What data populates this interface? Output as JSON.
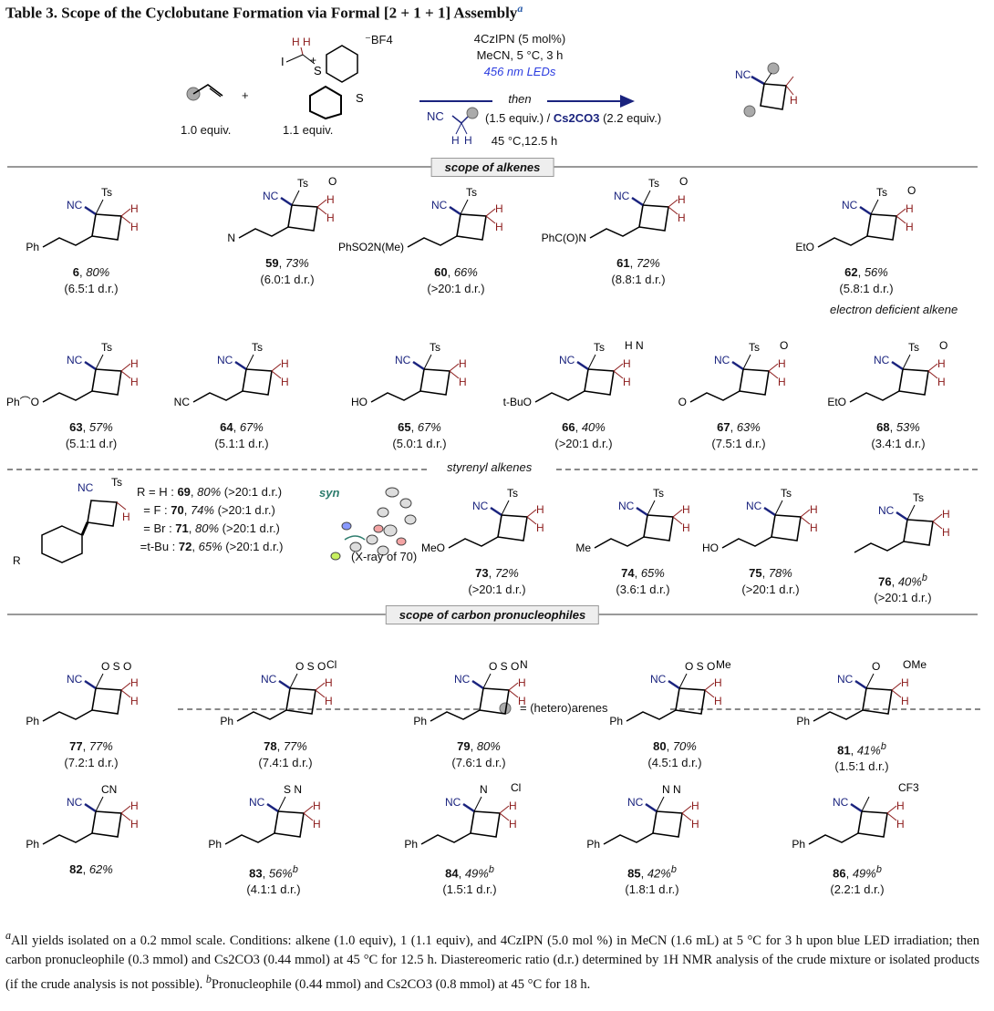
{
  "title": "Table 3. Scope of the Cyclobutane Formation via Formal [2 + 1 + 1] Assembly",
  "title_footnote": "a",
  "scheme": {
    "alkene_equiv": "1.0 equiv.",
    "plus": "+",
    "reagent_equiv": "1.1 equiv.",
    "reagent_atoms": {
      "I": "I",
      "H": "H",
      "S": "S",
      "plus": "+",
      "anion": "BF4"
    },
    "cond1": "4CzIPN (5 mol%)",
    "cond2": "MeCN, 5 °C, 3 h",
    "cond3": "456 nm LEDs",
    "then": "then",
    "nuc_atoms": {
      "NC": "NC",
      "H": "H"
    },
    "cond4": "(1.5 equiv.) / ",
    "base": "Cs2CO3",
    "cond4b": " (2.2 equiv.)",
    "cond5": "45 °C,12.5 h",
    "product_atoms": {
      "NC": "NC",
      "H": "H"
    }
  },
  "sections": {
    "alkenes": "scope of alkenes",
    "styrenyl": "styrenyl alkenes",
    "pronucleophiles": "scope of carbon pronucleophiles",
    "legend": "= (hetero)arenes",
    "electron_deficient": "electron deficient alkene"
  },
  "styrenyl_list": {
    "R": "R",
    "items": [
      {
        "r": "R = H",
        "num": "69",
        "yield": "80%",
        "dr": "(>20:1 d.r.)"
      },
      {
        "r": "= F",
        "num": "70",
        "yield": "74%",
        "dr": "(>20:1 d.r.)"
      },
      {
        "r": "= Br",
        "num": "71",
        "yield": "80%",
        "dr": "(>20:1 d.r.)"
      },
      {
        "r": "=t-Bu",
        "num": "72",
        "yield": "65%",
        "dr": "(>20:1 d.r.)"
      }
    ],
    "xray_label": "(X-ray of 70)",
    "syn": "syn"
  },
  "compounds": [
    {
      "num": "6",
      "yield": "80%",
      "dr": "(6.5:1 d.r.)",
      "sub": "Ph",
      "top": "Ts"
    },
    {
      "num": "59",
      "yield": "73%",
      "dr": "(6.0:1 d.r.)",
      "sub": "N",
      "top": "Ts",
      "extra": "O"
    },
    {
      "num": "60",
      "yield": "66%",
      "dr": "(>20:1 d.r.)",
      "sub": "PhSO2N(Me)",
      "top": "Ts"
    },
    {
      "num": "61",
      "yield": "72%",
      "dr": "(8.8:1 d.r.)",
      "sub": "PhC(O)N",
      "top": "Ts",
      "extra": "O"
    },
    {
      "num": "62",
      "yield": "56%",
      "dr": "(5.8:1 d.r.)",
      "sub": "EtO",
      "top": "Ts",
      "extra": "O"
    },
    {
      "num": "63",
      "yield": "57%",
      "dr": "(5.1:1 d.r)",
      "sub": "Ph⌒O",
      "top": "Ts"
    },
    {
      "num": "64",
      "yield": "67%",
      "dr": "(5.1:1 d.r.)",
      "sub": "NC",
      "top": "Ts"
    },
    {
      "num": "65",
      "yield": "67%",
      "dr": "(5.0:1 d.r.)",
      "sub": "HO",
      "top": "Ts"
    },
    {
      "num": "66",
      "yield": "40%",
      "dr": "(>20:1 d.r.)",
      "sub": "t-BuO",
      "top": "Ts",
      "extra": "H N"
    },
    {
      "num": "67",
      "yield": "63%",
      "dr": "(7.5:1 d.r.)",
      "sub": "O",
      "top": "Ts",
      "extra": "O"
    },
    {
      "num": "68",
      "yield": "53%",
      "dr": "(3.4:1 d.r.)",
      "sub": "EtO",
      "top": "Ts",
      "extra": "O"
    },
    {
      "num": "73",
      "yield": "72%",
      "dr": "(>20:1 d.r.)",
      "sub": "MeO",
      "top": "Ts"
    },
    {
      "num": "74",
      "yield": "65%",
      "dr": "(3.6:1 d.r.)",
      "sub": "Me",
      "top": "Ts"
    },
    {
      "num": "75",
      "yield": "78%",
      "dr": "(>20:1 d.r.)",
      "sub": "HO",
      "top": "Ts"
    },
    {
      "num": "76",
      "yield": "40%",
      "sup": "b",
      "dr": "(>20:1 d.r.)",
      "sub": "",
      "top": "Ts"
    },
    {
      "num": "77",
      "yield": "77%",
      "dr": "(7.2:1 d.r.)",
      "sub": "Ph",
      "top": "O S O"
    },
    {
      "num": "78",
      "yield": "77%",
      "dr": "(7.4:1 d.r.)",
      "sub": "Ph",
      "top": "O S O",
      "extra": "Cl"
    },
    {
      "num": "79",
      "yield": "80%",
      "dr": "(7.6:1 d.r.)",
      "sub": "Ph",
      "top": "O S O",
      "extra": "N"
    },
    {
      "num": "80",
      "yield": "70%",
      "dr": "(4.5:1 d.r.)",
      "sub": "Ph",
      "top": "O S O",
      "extra": "Me"
    },
    {
      "num": "81",
      "yield": "41%",
      "sup": "b",
      "dr": "(1.5:1 d.r.)",
      "sub": "Ph",
      "top": "O",
      "extra": "OMe"
    },
    {
      "num": "82",
      "yield": "62%",
      "dr": "",
      "sub": "Ph",
      "top": "CN"
    },
    {
      "num": "83",
      "yield": "56%",
      "sup": "b",
      "dr": "(4.1:1 d.r.)",
      "sub": "Ph",
      "top": "S N"
    },
    {
      "num": "84",
      "yield": "49%",
      "sup": "b",
      "dr": "(1.5:1 d.r.)",
      "sub": "Ph",
      "top": "N",
      "extra": "Cl"
    },
    {
      "num": "85",
      "yield": "42%",
      "sup": "b",
      "dr": "(1.8:1 d.r.)",
      "sub": "Ph",
      "top": "N N"
    },
    {
      "num": "86",
      "yield": "49%",
      "sup": "b",
      "dr": "(2.2:1 d.r.)",
      "sub": "Ph",
      "top": "",
      "extra": "CF3"
    }
  ],
  "footnote": {
    "a": "a",
    "text_a": "All yields isolated on a 0.2 mmol scale. Conditions: alkene (1.0 equiv), 1 (1.1 equiv), and 4CzIPN (5.0 mol %) in MeCN (1.6 mL) at 5 °C for 3 h upon blue LED irradiation; then carbon pronucleophile (0.3 mmol) and Cs2CO3 (0.44 mmol) at 45 °C for 12.5 h. Diastereomeric ratio (d.r.) determined by 1H NMR analysis of the crude mixture or isolated products (if the crude analysis is not possible).",
    "b": "b",
    "text_b": "Pronucleophile (0.44 mmol) and Cs2CO3 (0.8 mmol) at 45 °C for 18 h."
  },
  "colors": {
    "bond_blue": "#1a237e",
    "h_red": "#8b1a1a",
    "led": "#2c3de0"
  }
}
